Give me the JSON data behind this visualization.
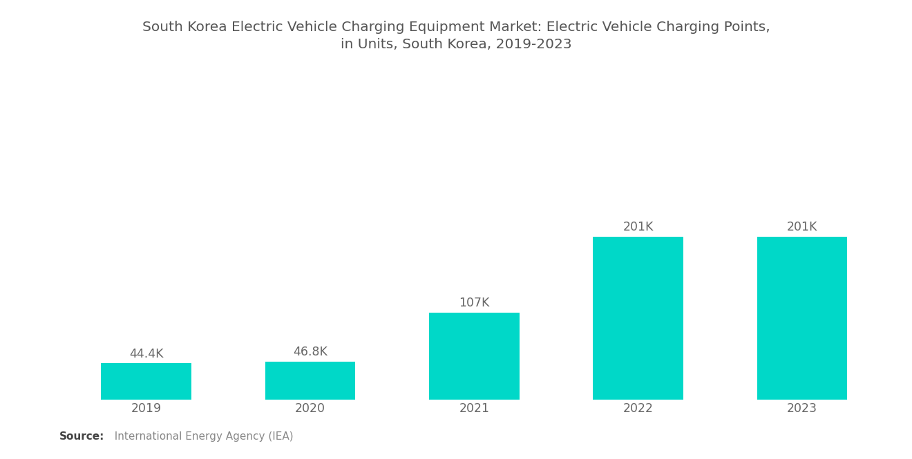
{
  "title": "South Korea Electric Vehicle Charging Equipment Market: Electric Vehicle Charging Points,\nin Units, South Korea, 2019-2023",
  "categories": [
    "2019",
    "2020",
    "2021",
    "2022",
    "2023"
  ],
  "values": [
    44400,
    46800,
    107000,
    201000,
    201000
  ],
  "labels": [
    "44.4K",
    "46.8K",
    "107K",
    "201K",
    "201K"
  ],
  "bar_color": "#00D8C8",
  "background_color": "#FFFFFF",
  "title_color": "#555555",
  "label_color": "#666666",
  "tick_color": "#666666",
  "source_bold": "Source:",
  "source_rest": "  International Energy Agency (IEA)",
  "ylim": [
    0,
    340000
  ],
  "bar_width": 0.55,
  "title_fontsize": 14.5,
  "label_fontsize": 12.5,
  "tick_fontsize": 12.5,
  "source_fontsize": 11
}
